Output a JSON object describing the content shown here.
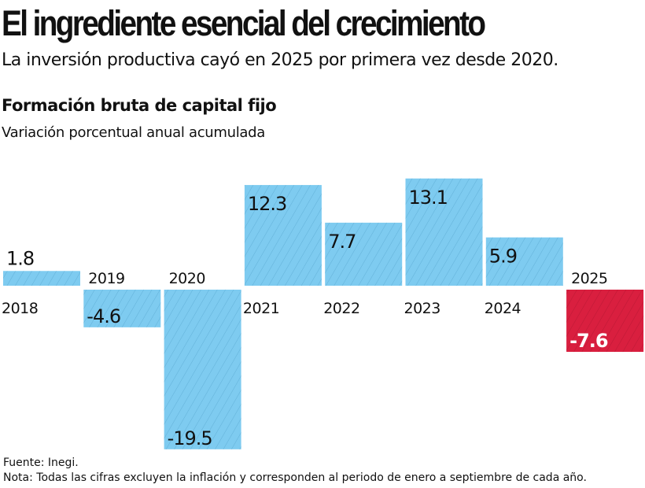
{
  "title": "El ingrediente esencial del crecimiento",
  "subtitle": "La inversión productiva cayó en 2025 por primera vez desde 2020.",
  "chart_data": {
    "type": "bar",
    "title": "Formación bruta de capital fijo",
    "subtitle": "Variación porcentual anual acumulada",
    "categories": [
      "2018",
      "2019",
      "2020",
      "2021",
      "2022",
      "2023",
      "2024",
      "2025"
    ],
    "values": [
      1.8,
      -4.6,
      -19.5,
      12.3,
      7.7,
      13.1,
      5.9,
      -7.6
    ],
    "value_labels": [
      "1.8",
      "-4.6",
      "-19.5",
      "12.3",
      "7.7",
      "13.1",
      "5.9",
      "-7.6"
    ],
    "colors": {
      "default": "#7ecbf0",
      "highlight": "#d91f3f",
      "hatch_default": "#4f9fc8",
      "hatch_highlight": "#a8142e"
    },
    "highlight_category": "2025",
    "grid": false,
    "legend": "none"
  },
  "footer": {
    "source": "Fuente: Inegi.",
    "note": "Nota: Todas las cifras excluyen la inflación y corresponden al periodo de enero a septiembre de cada año."
  }
}
